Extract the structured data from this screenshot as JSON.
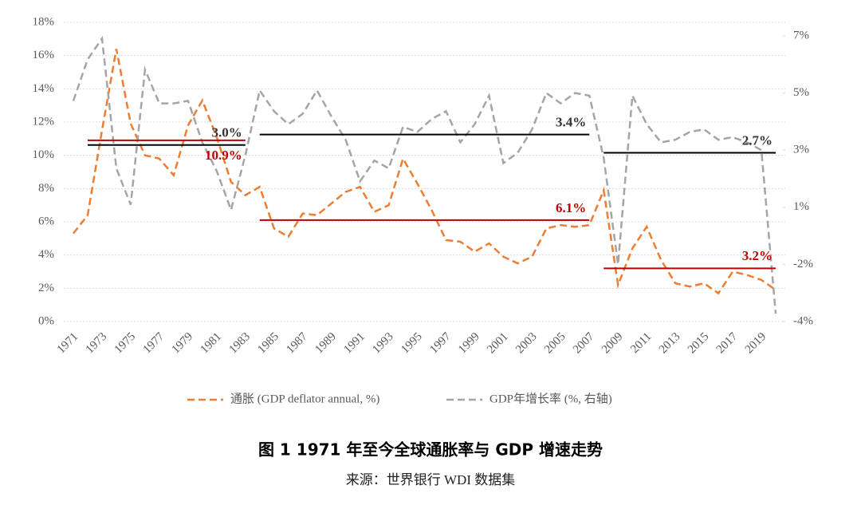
{
  "chart_data": {
    "type": "line",
    "title": "图 1 1971 年至今全球通胀率与 GDP 增速走势",
    "subtitle": "来源：世界银行 WDI 数据集",
    "categories": [
      "1971",
      null,
      "1973",
      null,
      "1975",
      null,
      "1977",
      null,
      "1979",
      null,
      "1981",
      null,
      "1983",
      null,
      "1985",
      null,
      "1987",
      null,
      "1989",
      null,
      "1991",
      null,
      "1993",
      null,
      "1995",
      null,
      "1997",
      null,
      "1999",
      null,
      "2001",
      null,
      "2003",
      null,
      "2005",
      null,
      "2007",
      null,
      "2009",
      null,
      "2011",
      null,
      "2013",
      null,
      "2015",
      null,
      "2017",
      null,
      "2019",
      null
    ],
    "series": [
      {
        "name": "通胀 (GDP deflator annual, %)",
        "color": "#ED7D31",
        "axis": "y",
        "values": [
          5.3,
          6.4,
          11.5,
          16.4,
          11.9,
          10.0,
          9.8,
          8.8,
          11.8,
          13.3,
          11.1,
          8.4,
          7.6,
          8.1,
          5.6,
          5.1,
          6.5,
          6.4,
          7.1,
          7.8,
          8.1,
          6.6,
          7.0,
          9.8,
          8.3,
          6.7,
          4.9,
          4.8,
          4.2,
          4.7,
          3.9,
          3.5,
          3.9,
          5.6,
          5.8,
          5.7,
          5.8,
          7.9,
          2.2,
          4.4,
          5.7,
          3.7,
          2.3,
          2.1,
          2.3,
          1.7,
          3.0,
          2.8,
          2.5,
          1.9
        ]
      },
      {
        "name": "GDP年增长率 (%, 右轴)",
        "color": "#A5A5A5",
        "axis": "y2",
        "values": [
          4.7,
          6.3,
          7.1,
          2.1,
          0.7,
          5.9,
          4.6,
          4.6,
          4.7,
          3.1,
          2.0,
          0.5,
          2.6,
          5.1,
          4.3,
          3.8,
          4.2,
          5.1,
          4.1,
          3.2,
          1.6,
          2.4,
          2.1,
          3.7,
          3.5,
          4.0,
          4.3,
          3.1,
          3.8,
          4.9,
          2.3,
          2.7,
          3.6,
          5.0,
          4.6,
          5.0,
          4.9,
          2.5,
          -1.6,
          4.9,
          3.8,
          3.1,
          3.2,
          3.5,
          3.6,
          3.2,
          3.3,
          3.1,
          2.8,
          -3.5
        ]
      }
    ],
    "annotations": [
      {
        "text": "3.0%",
        "value": 3.0,
        "axis": "y2",
        "x0": 1972,
        "x1": 1983,
        "color": "#000000"
      },
      {
        "text": "10.9%",
        "value": 10.9,
        "axis": "y",
        "x0": 1972,
        "x1": 1983,
        "color": "#C00000"
      },
      {
        "text": "3.4%",
        "value": 3.4,
        "axis": "y2",
        "x0": 1984,
        "x1": 2007,
        "color": "#000000"
      },
      {
        "text": "6.1%",
        "value": 6.1,
        "axis": "y",
        "x0": 1984,
        "x1": 2007,
        "color": "#C00000"
      },
      {
        "text": "2.7%",
        "value": 2.7,
        "axis": "y2",
        "x0": 2008,
        "x1": 2020,
        "color": "#000000"
      },
      {
        "text": "3.2%",
        "value": 3.2,
        "axis": "y",
        "x0": 2008,
        "x1": 2020,
        "color": "#C00000"
      }
    ],
    "ylim": [
      0,
      18
    ],
    "yticks": [
      {
        "value": 0,
        "label": "0%"
      },
      {
        "value": 2,
        "label": "2%"
      },
      {
        "value": 4,
        "label": "4%"
      },
      {
        "value": 6,
        "label": "6%"
      },
      {
        "value": 8,
        "label": "8%"
      },
      {
        "value": 10,
        "label": "10%"
      },
      {
        "value": 12,
        "label": "12%"
      },
      {
        "value": 14,
        "label": "14%"
      },
      {
        "value": 16,
        "label": "16%"
      },
      {
        "value": 18,
        "label": "18%"
      }
    ],
    "y2lim": [
      -3.8,
      7.2
    ],
    "y2ticks": [
      {
        "value": -3.8,
        "label": "-4%"
      },
      {
        "value": -1.6,
        "label": "-2%"
      },
      {
        "value": 0.6,
        "label": "1%"
      },
      {
        "value": 2.8,
        "label": "3%"
      },
      {
        "value": 5.0,
        "label": "5%"
      },
      {
        "value": 7.2,
        "label": "7%"
      }
    ],
    "grid": true,
    "legend": "bottom"
  }
}
